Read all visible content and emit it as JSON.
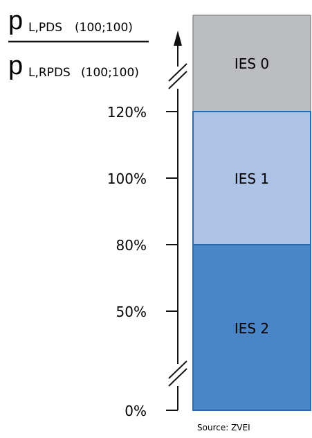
{
  "axis_label": {
    "numerator": {
      "symbol": "p",
      "subscript": "L,PDS",
      "args": "(100;100)"
    },
    "denominator": {
      "symbol": "p",
      "subscript": "L,RPDS",
      "args": "(100;100)"
    }
  },
  "ticks": [
    "120%",
    "100%",
    "80%",
    "50%",
    "0%"
  ],
  "bands": [
    {
      "label": "IES 0",
      "color": "#bcbdc0"
    },
    {
      "label": "IES 1",
      "color": "#adc3e5"
    },
    {
      "label": "IES 2",
      "color": "#4a86c7"
    }
  ],
  "source": "Source: ZVEI"
}
